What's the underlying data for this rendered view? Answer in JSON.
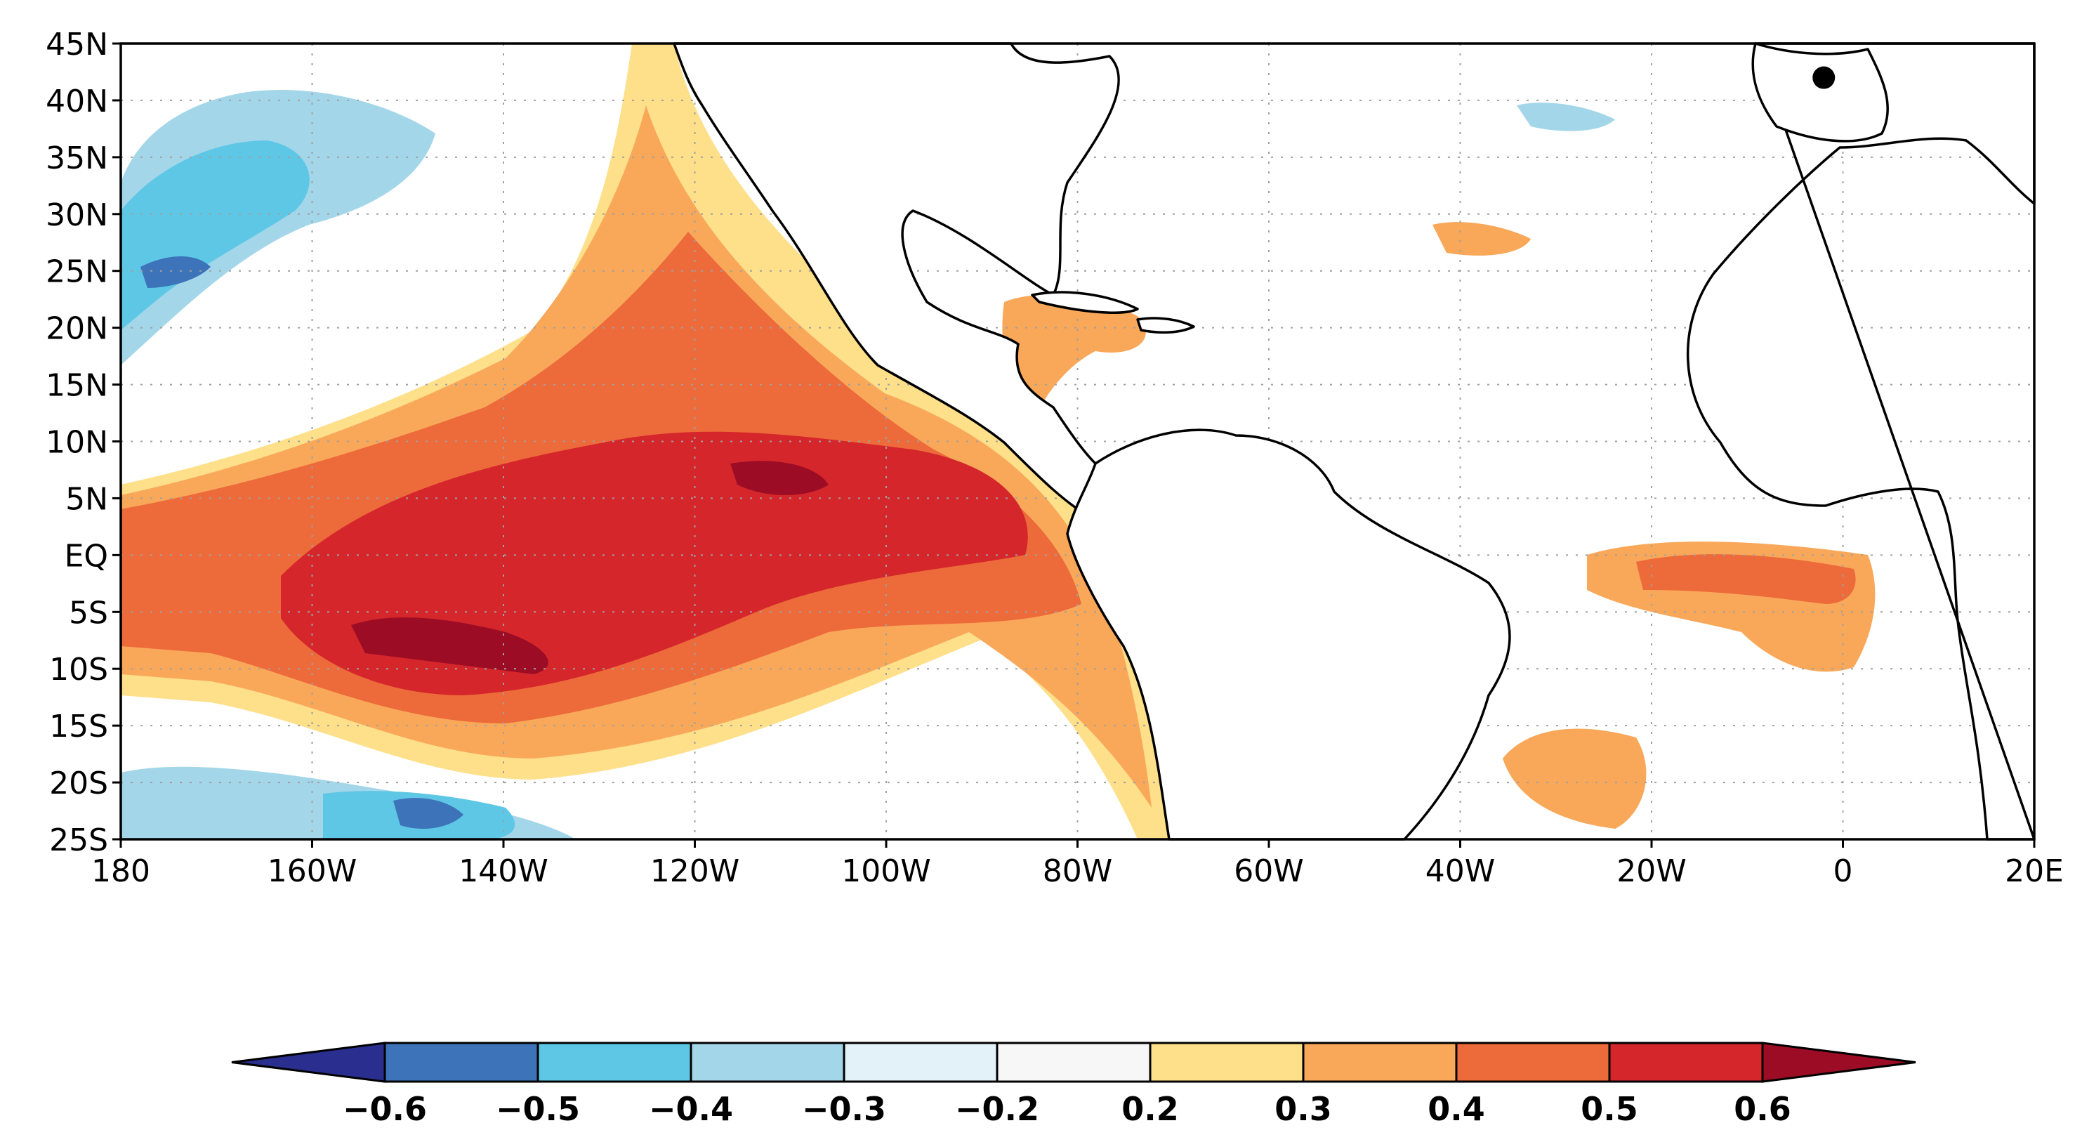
{
  "map": {
    "lat_labels": [
      "45N",
      "40N",
      "35N",
      "30N",
      "25N",
      "20N",
      "15N",
      "10N",
      "5N",
      "EQ",
      "5S",
      "10S",
      "15S",
      "20S",
      "25S"
    ],
    "lon_labels": [
      "180",
      "160W",
      "140W",
      "120W",
      "100W",
      "80W",
      "60W",
      "40W",
      "20W",
      "0",
      "20E"
    ],
    "lat_range": [
      -25,
      45
    ],
    "lon_range": [
      -180,
      20
    ],
    "gridlines": true,
    "marker": {
      "lon": -2,
      "lat": 42
    }
  },
  "colorbar": {
    "tick_labels": [
      "−0.6",
      "−0.5",
      "−0.4",
      "−0.3",
      "−0.2",
      "0.2",
      "0.3",
      "0.4",
      "0.5",
      "0.6"
    ],
    "colors": [
      "#2a2f8f",
      "#3d73b8",
      "#5ec7e6",
      "#a4d6ea",
      "#e3f2f9",
      "#f7f7f7",
      "#fedf8a",
      "#f9a85a",
      "#ed6a3a",
      "#d5262b",
      "#9c0d25"
    ]
  },
  "legend_colors": {
    "c1": "#fedf8a",
    "c2": "#f9a85a",
    "c3": "#ed6a3a",
    "c4": "#d5262b",
    "c5": "#9c0d25",
    "n1": "#e3f2f9",
    "n2": "#a4d6ea",
    "n3": "#5ec7e6",
    "n4": "#3d73b8"
  }
}
